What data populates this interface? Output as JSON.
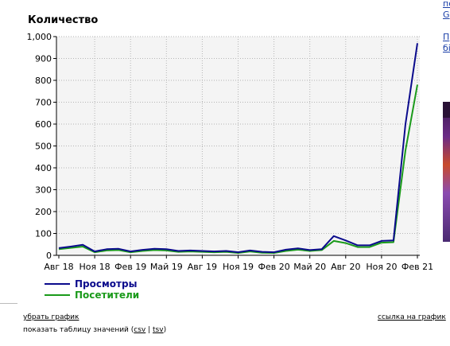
{
  "chart_data": {
    "type": "line",
    "title": "Количество",
    "xlabel": "",
    "ylabel": "",
    "ylim": [
      0,
      1000
    ],
    "yticks": [
      0,
      100,
      200,
      300,
      400,
      500,
      600,
      700,
      800,
      900,
      1000
    ],
    "ytick_labels": [
      "0",
      "100",
      "200",
      "300",
      "400",
      "500",
      "600",
      "700",
      "800",
      "900",
      "1,000"
    ],
    "xtick_labels": [
      "Авг 18",
      "Ноя 18",
      "Фев 19",
      "Май 19",
      "Авг 19",
      "Ноя 19",
      "Фев 20",
      "Май 20",
      "Авг 20",
      "Ноя 20",
      "Фев 21"
    ],
    "x": [
      "2018-08",
      "2018-09",
      "2018-10",
      "2018-11",
      "2018-12",
      "2019-01",
      "2019-02",
      "2019-03",
      "2019-04",
      "2019-05",
      "2019-06",
      "2019-07",
      "2019-08",
      "2019-09",
      "2019-10",
      "2019-11",
      "2019-12",
      "2020-01",
      "2020-02",
      "2020-03",
      "2020-04",
      "2020-05",
      "2020-06",
      "2020-07",
      "2020-08",
      "2020-09",
      "2020-10",
      "2020-11",
      "2020-12",
      "2021-01",
      "2021-02"
    ],
    "grid": true,
    "legend_position": "bottom-left",
    "series": [
      {
        "name": "Просмотры",
        "color": "#0a0a8c",
        "values": [
          33,
          40,
          48,
          18,
          28,
          30,
          18,
          25,
          30,
          28,
          20,
          22,
          20,
          18,
          20,
          14,
          22,
          16,
          14,
          26,
          32,
          24,
          28,
          88,
          68,
          46,
          46,
          66,
          68,
          600,
          970
        ]
      },
      {
        "name": "Посетители",
        "color": "#1a9a1a",
        "values": [
          28,
          34,
          40,
          14,
          22,
          24,
          14,
          20,
          24,
          22,
          16,
          18,
          16,
          14,
          16,
          11,
          18,
          12,
          11,
          20,
          26,
          20,
          24,
          66,
          56,
          38,
          38,
          58,
          60,
          480,
          780
        ]
      }
    ]
  },
  "footer": {
    "remove_chart": "убрать график",
    "chart_link": "ссылка на график",
    "show_table": "показать таблицу значений (",
    "csv": "csv",
    "separator": " | ",
    "tsv": "tsv",
    "close_paren": ")"
  },
  "edge": {
    "line1": "по",
    "line2": "G",
    "line3": "П",
    "line4": "бі"
  }
}
